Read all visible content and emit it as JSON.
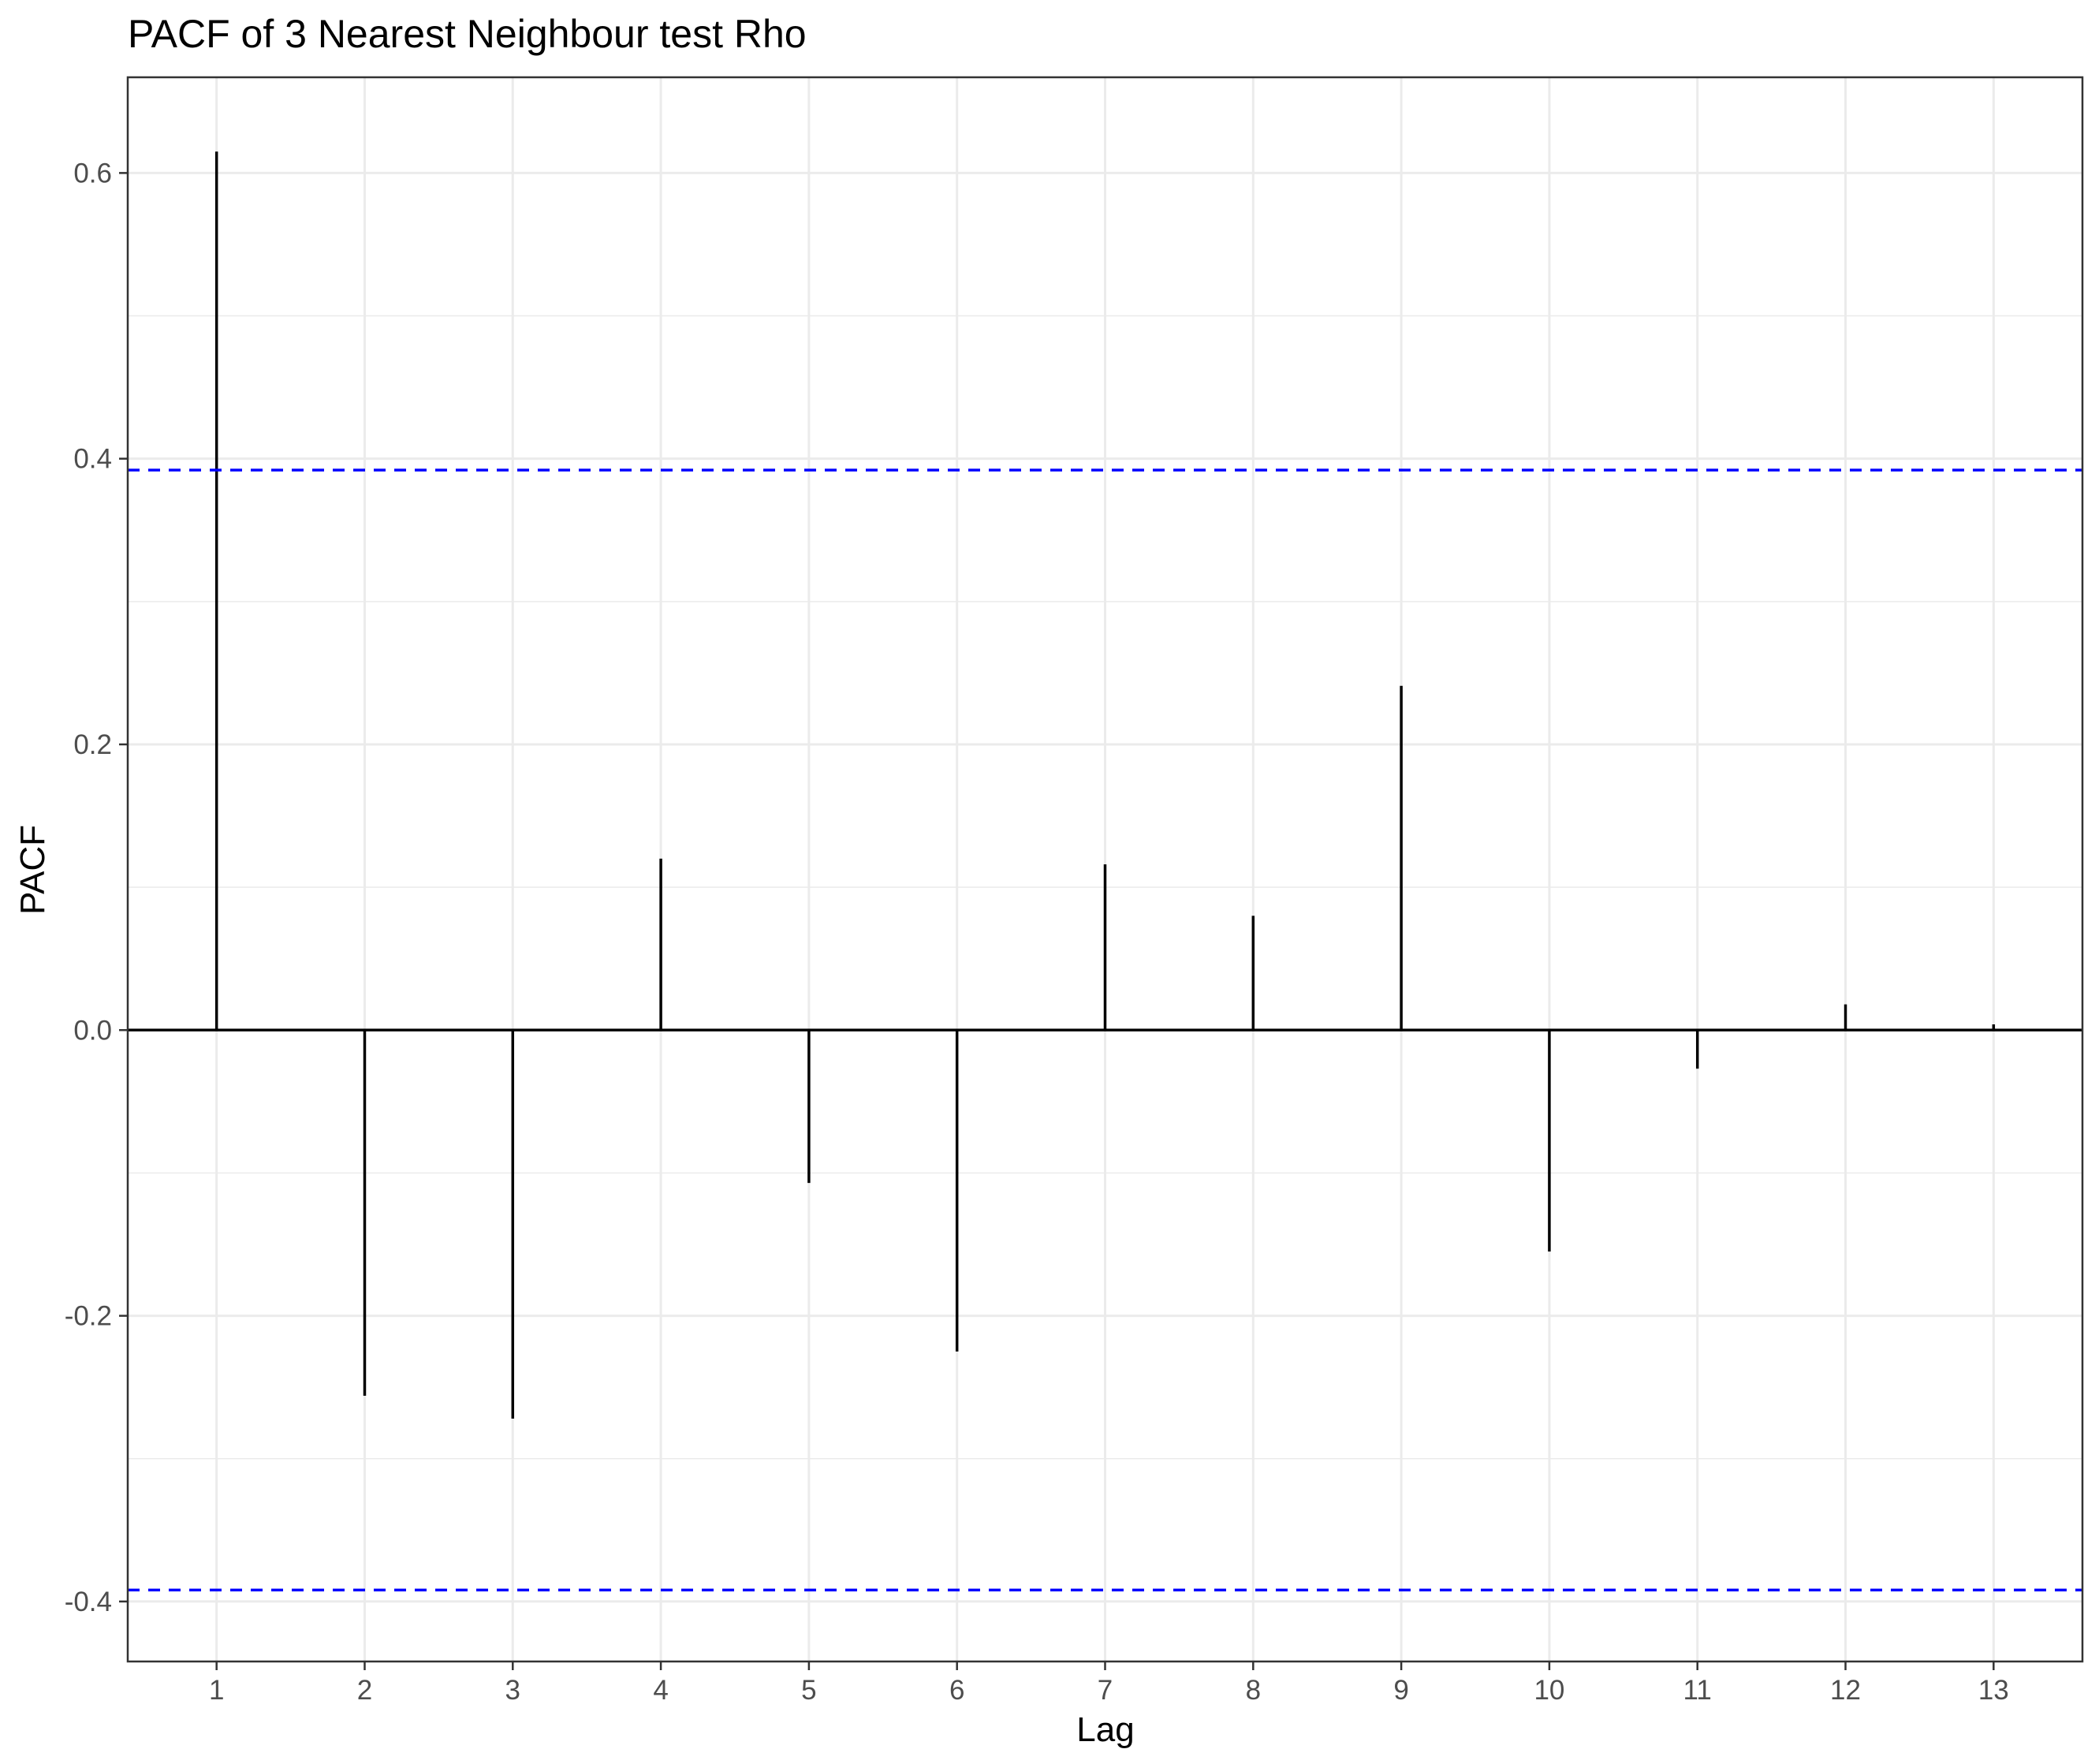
{
  "chart_data": {
    "type": "bar",
    "title": "PACF of 3 Nearest Neighbour test Rho",
    "xlabel": "Lag",
    "ylabel": "PACF",
    "x": [
      1,
      2,
      3,
      4,
      5,
      6,
      7,
      8,
      9,
      10,
      11,
      12,
      13
    ],
    "values": [
      0.615,
      -0.256,
      -0.272,
      0.12,
      -0.107,
      -0.225,
      0.116,
      0.08,
      0.241,
      -0.155,
      -0.027,
      0.018,
      0.004
    ],
    "xticks": [
      "1",
      "2",
      "3",
      "4",
      "5",
      "6",
      "7",
      "8",
      "9",
      "10",
      "11",
      "12",
      "13"
    ],
    "yticks": [
      "-0.4",
      "-0.2",
      "0.0",
      "0.2",
      "0.4",
      "0.6"
    ],
    "xlim": [
      0.4,
      13.6
    ],
    "ylim": [
      -0.442,
      0.667
    ],
    "confidence_bounds": [
      0.392,
      -0.392
    ],
    "grid": true,
    "colors": {
      "bars": "#000000",
      "confidence": "#0000ff",
      "grid": "#ebebeb",
      "panel_border": "#333333"
    }
  }
}
